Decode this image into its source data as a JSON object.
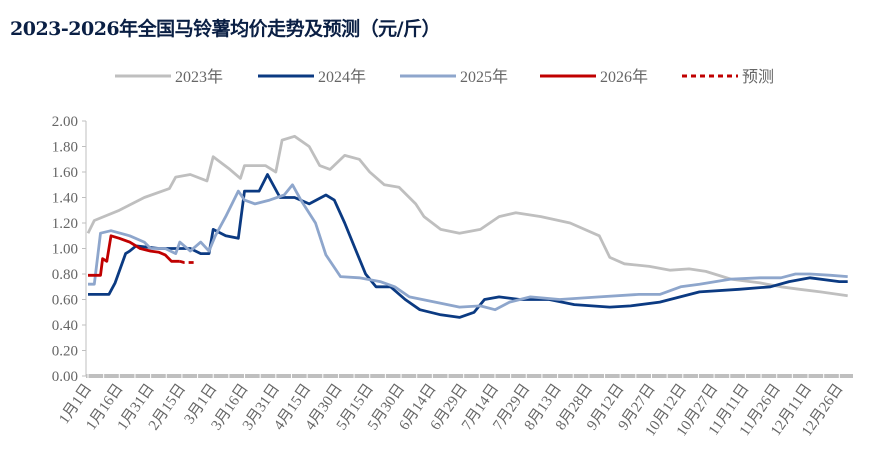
{
  "title": "2023-2026年全国马铃薯均价走势及预测（元/斤）",
  "chart_data": {
    "type": "line",
    "title": "2023-2026年全国马铃薯均价走势及预测（元/斤）",
    "xlabel": "",
    "ylabel": "",
    "ylim": [
      0,
      2.0
    ],
    "yticks": [
      "0.00",
      "0.20",
      "0.40",
      "0.60",
      "0.80",
      "1.00",
      "1.20",
      "1.40",
      "1.60",
      "1.80",
      "2.00"
    ],
    "xticks": [
      "1月1日",
      "1月16日",
      "1月31日",
      "2月15日",
      "3月1日",
      "3月16日",
      "3月31日",
      "4月15日",
      "4月30日",
      "5月15日",
      "5月30日",
      "6月14日",
      "6月29日",
      "7月14日",
      "7月29日",
      "8月13日",
      "8月28日",
      "9月12日",
      "9月27日",
      "10月12日",
      "10月27日",
      "11月11日",
      "11月26日",
      "12月11日",
      "12月26日"
    ],
    "grid": false,
    "legend": "top",
    "series": [
      {
        "name": "2023年",
        "color": "#bfbfbf",
        "dash": false,
        "points": [
          [
            "1/1",
            1.12
          ],
          [
            "1/4",
            1.22
          ],
          [
            "1/16",
            1.3
          ],
          [
            "1/28",
            1.4
          ],
          [
            "2/9",
            1.47
          ],
          [
            "2/12",
            1.56
          ],
          [
            "2/19",
            1.58
          ],
          [
            "2/27",
            1.53
          ],
          [
            "3/2",
            1.72
          ],
          [
            "3/10",
            1.62
          ],
          [
            "3/15",
            1.55
          ],
          [
            "3/17",
            1.65
          ],
          [
            "3/27",
            1.65
          ],
          [
            "4/1",
            1.6
          ],
          [
            "4/4",
            1.85
          ],
          [
            "4/10",
            1.88
          ],
          [
            "4/17",
            1.8
          ],
          [
            "4/22",
            1.65
          ],
          [
            "4/27",
            1.62
          ],
          [
            "5/4",
            1.73
          ],
          [
            "5/11",
            1.7
          ],
          [
            "5/16",
            1.6
          ],
          [
            "5/23",
            1.5
          ],
          [
            "5/30",
            1.48
          ],
          [
            "6/7",
            1.35
          ],
          [
            "6/11",
            1.25
          ],
          [
            "6/19",
            1.15
          ],
          [
            "6/28",
            1.12
          ],
          [
            "7/8",
            1.15
          ],
          [
            "7/17",
            1.25
          ],
          [
            "7/25",
            1.28
          ],
          [
            "8/6",
            1.25
          ],
          [
            "8/20",
            1.2
          ],
          [
            "9/3",
            1.1
          ],
          [
            "9/8",
            0.93
          ],
          [
            "9/15",
            0.88
          ],
          [
            "9/27",
            0.86
          ],
          [
            "10/7",
            0.83
          ],
          [
            "10/16",
            0.84
          ],
          [
            "10/24",
            0.82
          ],
          [
            "11/5",
            0.76
          ],
          [
            "11/19",
            0.73
          ],
          [
            "11/29",
            0.7
          ],
          [
            "12/8",
            0.68
          ],
          [
            "12/18",
            0.66
          ],
          [
            "12/31",
            0.63
          ]
        ]
      },
      {
        "name": "2024年",
        "color": "#0b3a82",
        "dash": false,
        "points": [
          [
            "1/1",
            0.64
          ],
          [
            "1/11",
            0.64
          ],
          [
            "1/14",
            0.73
          ],
          [
            "1/19",
            0.96
          ],
          [
            "1/21",
            0.98
          ],
          [
            "1/24",
            1.02
          ],
          [
            "2/4",
            1.0
          ],
          [
            "2/19",
            1.0
          ],
          [
            "2/24",
            0.96
          ],
          [
            "2/28",
            0.96
          ],
          [
            "3/2",
            1.15
          ],
          [
            "3/8",
            1.1
          ],
          [
            "3/14",
            1.08
          ],
          [
            "3/17",
            1.45
          ],
          [
            "3/24",
            1.45
          ],
          [
            "3/28",
            1.58
          ],
          [
            "4/3",
            1.4
          ],
          [
            "4/10",
            1.4
          ],
          [
            "4/17",
            1.35
          ],
          [
            "4/25",
            1.42
          ],
          [
            "4/29",
            1.38
          ],
          [
            "5/4",
            1.2
          ],
          [
            "5/9",
            1.0
          ],
          [
            "5/14",
            0.8
          ],
          [
            "5/19",
            0.7
          ],
          [
            "5/26",
            0.7
          ],
          [
            "6/2",
            0.6
          ],
          [
            "6/9",
            0.52
          ],
          [
            "6/19",
            0.48
          ],
          [
            "6/28",
            0.46
          ],
          [
            "7/5",
            0.5
          ],
          [
            "7/10",
            0.6
          ],
          [
            "7/17",
            0.62
          ],
          [
            "7/27",
            0.6
          ],
          [
            "8/10",
            0.6
          ],
          [
            "8/22",
            0.56
          ],
          [
            "9/8",
            0.54
          ],
          [
            "9/18",
            0.55
          ],
          [
            "10/2",
            0.58
          ],
          [
            "10/21",
            0.66
          ],
          [
            "11/9",
            0.68
          ],
          [
            "11/24",
            0.7
          ],
          [
            "12/3",
            0.74
          ],
          [
            "12/13",
            0.77
          ],
          [
            "12/27",
            0.74
          ],
          [
            "12/31",
            0.74
          ]
        ]
      },
      {
        "name": "2025年",
        "color": "#8ea6cc",
        "dash": false,
        "points": [
          [
            "1/1",
            0.72
          ],
          [
            "1/4",
            0.72
          ],
          [
            "1/7",
            1.12
          ],
          [
            "1/12",
            1.14
          ],
          [
            "1/21",
            1.1
          ],
          [
            "1/28",
            1.05
          ],
          [
            "1/31",
            1.0
          ],
          [
            "2/7",
            1.0
          ],
          [
            "2/12",
            0.96
          ],
          [
            "2/14",
            1.05
          ],
          [
            "2/19",
            0.98
          ],
          [
            "2/24",
            1.05
          ],
          [
            "2/28",
            0.98
          ],
          [
            "3/3",
            1.1
          ],
          [
            "3/8",
            1.25
          ],
          [
            "3/14",
            1.45
          ],
          [
            "3/17",
            1.38
          ],
          [
            "3/22",
            1.35
          ],
          [
            "3/29",
            1.38
          ],
          [
            "4/5",
            1.42
          ],
          [
            "4/9",
            1.5
          ],
          [
            "4/13",
            1.38
          ],
          [
            "4/20",
            1.2
          ],
          [
            "4/25",
            0.95
          ],
          [
            "5/2",
            0.78
          ],
          [
            "5/11",
            0.77
          ],
          [
            "5/21",
            0.74
          ],
          [
            "5/28",
            0.7
          ],
          [
            "6/4",
            0.62
          ],
          [
            "6/19",
            0.57
          ],
          [
            "6/28",
            0.54
          ],
          [
            "7/8",
            0.55
          ],
          [
            "7/15",
            0.52
          ],
          [
            "7/22",
            0.58
          ],
          [
            "8/1",
            0.62
          ],
          [
            "8/15",
            0.6
          ],
          [
            "9/3",
            0.62
          ],
          [
            "9/22",
            0.64
          ],
          [
            "10/2",
            0.64
          ],
          [
            "10/12",
            0.7
          ],
          [
            "10/21",
            0.72
          ],
          [
            "11/5",
            0.76
          ],
          [
            "11/19",
            0.77
          ],
          [
            "11/29",
            0.77
          ],
          [
            "12/6",
            0.8
          ],
          [
            "12/13",
            0.8
          ],
          [
            "12/23",
            0.79
          ],
          [
            "12/31",
            0.78
          ]
        ]
      },
      {
        "name": "2026年",
        "color": "#c00000",
        "dash": false,
        "points": [
          [
            "1/1",
            0.79
          ],
          [
            "1/7",
            0.79
          ],
          [
            "1/8",
            0.92
          ],
          [
            "1/10",
            0.9
          ],
          [
            "1/12",
            1.1
          ],
          [
            "1/16",
            1.08
          ],
          [
            "1/21",
            1.05
          ],
          [
            "1/26",
            1.0
          ],
          [
            "1/31",
            0.98
          ],
          [
            "2/4",
            0.97
          ],
          [
            "2/7",
            0.95
          ],
          [
            "2/10",
            0.9
          ],
          [
            "2/14",
            0.9
          ]
        ]
      },
      {
        "name": "预测",
        "color": "#c00000",
        "dash": true,
        "points": [
          [
            "2/14",
            0.9
          ],
          [
            "2/16",
            0.89
          ],
          [
            "2/21",
            0.89
          ]
        ]
      }
    ]
  }
}
